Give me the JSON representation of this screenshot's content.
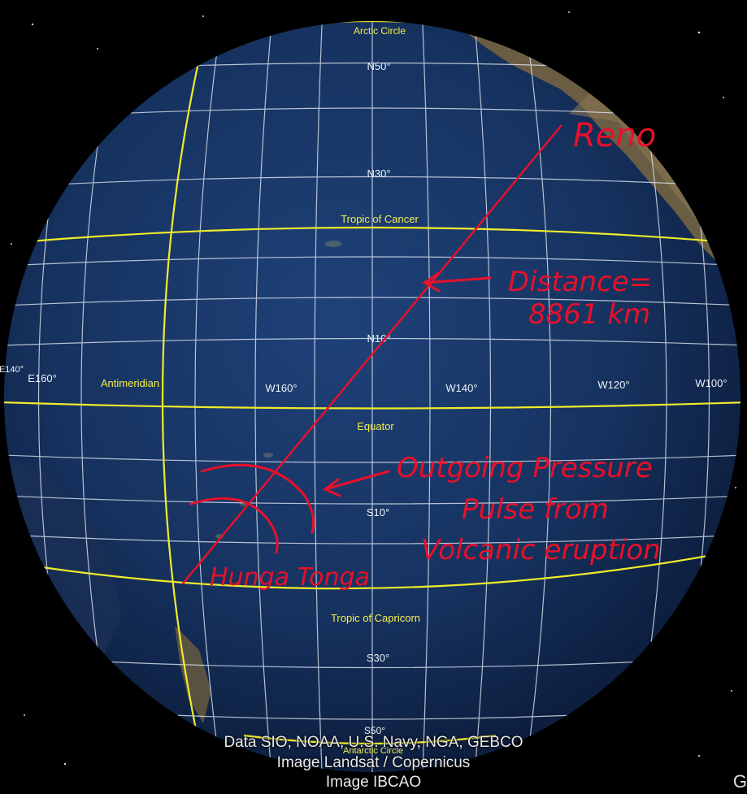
{
  "map": {
    "graticule_labels": {
      "arctic_circle": "Arctic Circle",
      "n50": "N50°",
      "n30": "N30°",
      "tropic_cancer": "Tropic of Cancer",
      "n10": "N10°",
      "e140": "E140°",
      "e160": "E160°",
      "antimeridian": "Antimeridian",
      "w160": "W160°",
      "w140": "W140°",
      "w120": "W120°",
      "w100": "W100°",
      "equator": "Equator",
      "s10": "S10°",
      "tropic_capricorn": "Tropic of Capricorn",
      "s30": "S30°",
      "s50": "S50°",
      "antarctic_circle": "Antarctic Circle"
    },
    "annotations": {
      "reno": "Reno",
      "distance_line1": "Distance=",
      "distance_line2": "8861 km",
      "pulse_line1": "Outgoing Pressure",
      "pulse_line2": "Pulse from",
      "pulse_line3": "Volcanic eruption",
      "hunga_tonga": "Hunga Tonga"
    },
    "attribution": {
      "line1": "Data SIO, NOAA, U.S. Navy, NGA, GEBCO",
      "line2": "Image Landsat / Copernicus",
      "line3": "Image IBCAO"
    },
    "corner_glyph": "G",
    "colors": {
      "ocean": "#15305e",
      "grid": "#dfe6f2",
      "yellow_lines": "#f0ec2a",
      "annotation_red": "#e8102a",
      "land": "#7b6a4a"
    }
  }
}
